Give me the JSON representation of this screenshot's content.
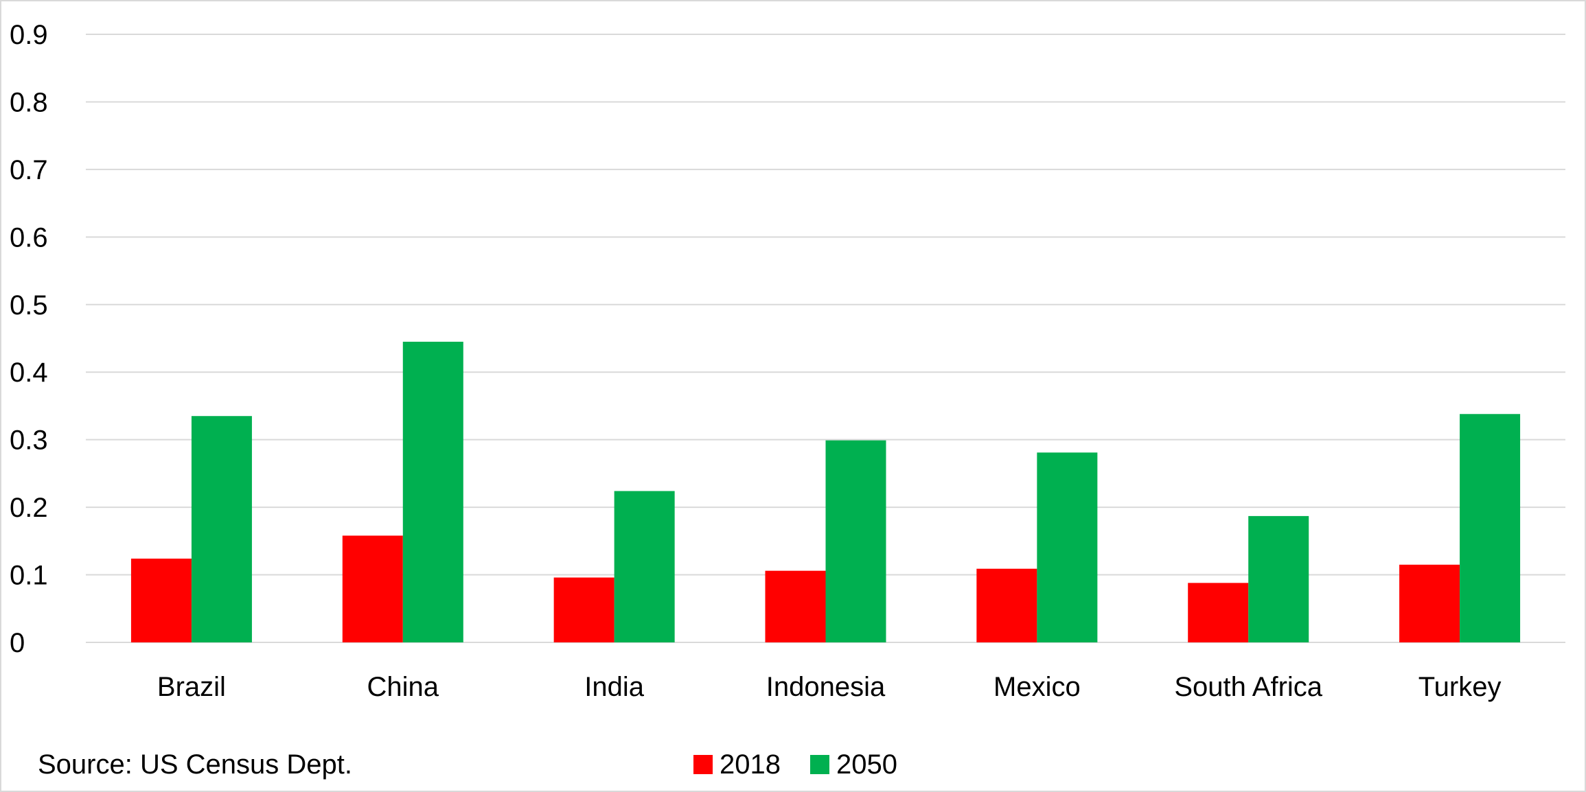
{
  "chart_data": {
    "type": "bar",
    "title": "",
    "xlabel": "",
    "ylabel": "",
    "categories": [
      "Brazil",
      "China",
      "India",
      "Indonesia",
      "Mexico",
      "South Africa",
      "Turkey"
    ],
    "series": [
      {
        "name": "2018",
        "color": "#ff0000",
        "values": [
          0.124,
          0.158,
          0.096,
          0.106,
          0.109,
          0.088,
          0.115
        ]
      },
      {
        "name": "2050",
        "color": "#00b050",
        "values": [
          0.335,
          0.445,
          0.224,
          0.299,
          0.281,
          0.187,
          0.338
        ]
      }
    ],
    "ylim": [
      0,
      0.9
    ],
    "yticks": [
      "0",
      "0.1",
      "0.2",
      "0.3",
      "0.4",
      "0.5",
      "0.6",
      "0.7",
      "0.8",
      "0.9"
    ],
    "grid": true,
    "legend_position": "bottom-center",
    "gridline_color": "#d9d9d9"
  },
  "source_note": "Source: US Census Dept."
}
